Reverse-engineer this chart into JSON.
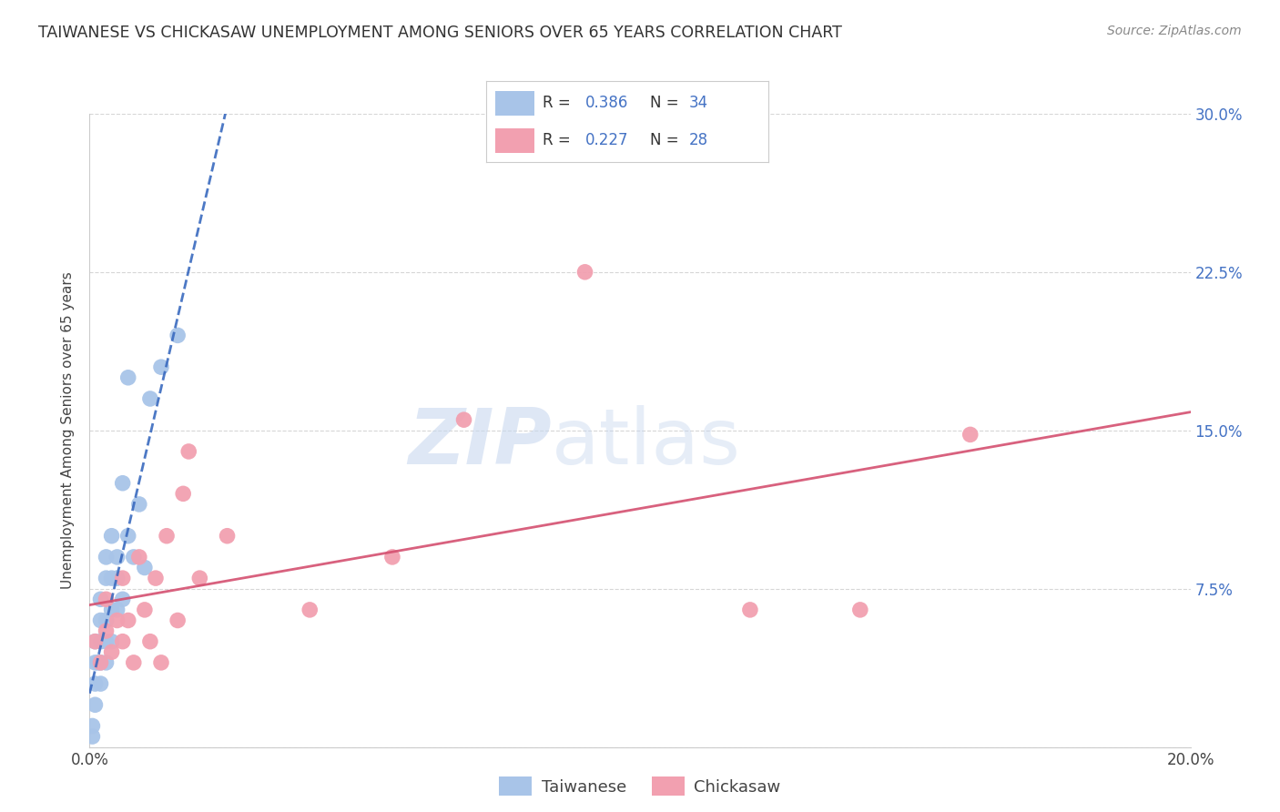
{
  "title": "TAIWANESE VS CHICKASAW UNEMPLOYMENT AMONG SENIORS OVER 65 YEARS CORRELATION CHART",
  "source": "Source: ZipAtlas.com",
  "ylabel": "Unemployment Among Seniors over 65 years",
  "watermark_zip": "ZIP",
  "watermark_atlas": "atlas",
  "taiwanese_R": 0.386,
  "taiwanese_N": 34,
  "chickasaw_R": 0.227,
  "chickasaw_N": 28,
  "taiwanese_color": "#a8c4e8",
  "chickasaw_color": "#f2a0b0",
  "taiwanese_line_color": "#3a6abf",
  "chickasaw_line_color": "#d45070",
  "xlim": [
    0.0,
    0.2
  ],
  "ylim": [
    0.0,
    0.3
  ],
  "xticks": [
    0.0,
    0.04,
    0.08,
    0.12,
    0.16,
    0.2
  ],
  "yticks": [
    0.0,
    0.075,
    0.15,
    0.225,
    0.3
  ],
  "taiwanese_x": [
    0.0005,
    0.0005,
    0.001,
    0.001,
    0.001,
    0.001,
    0.0015,
    0.002,
    0.002,
    0.002,
    0.002,
    0.002,
    0.003,
    0.003,
    0.003,
    0.003,
    0.003,
    0.004,
    0.004,
    0.004,
    0.004,
    0.005,
    0.005,
    0.005,
    0.006,
    0.006,
    0.007,
    0.007,
    0.008,
    0.009,
    0.01,
    0.011,
    0.013,
    0.016
  ],
  "taiwanese_y": [
    0.005,
    0.01,
    0.02,
    0.03,
    0.04,
    0.05,
    0.04,
    0.03,
    0.04,
    0.05,
    0.06,
    0.07,
    0.04,
    0.05,
    0.06,
    0.08,
    0.09,
    0.05,
    0.065,
    0.08,
    0.1,
    0.065,
    0.08,
    0.09,
    0.07,
    0.125,
    0.1,
    0.175,
    0.09,
    0.115,
    0.085,
    0.165,
    0.18,
    0.195
  ],
  "chickasaw_x": [
    0.001,
    0.002,
    0.003,
    0.003,
    0.004,
    0.005,
    0.006,
    0.006,
    0.007,
    0.008,
    0.009,
    0.01,
    0.011,
    0.012,
    0.013,
    0.014,
    0.016,
    0.017,
    0.018,
    0.02,
    0.025,
    0.04,
    0.055,
    0.068,
    0.09,
    0.12,
    0.14,
    0.16
  ],
  "chickasaw_y": [
    0.05,
    0.04,
    0.055,
    0.07,
    0.045,
    0.06,
    0.05,
    0.08,
    0.06,
    0.04,
    0.09,
    0.065,
    0.05,
    0.08,
    0.04,
    0.1,
    0.06,
    0.12,
    0.14,
    0.08,
    0.1,
    0.065,
    0.09,
    0.155,
    0.225,
    0.065,
    0.065,
    0.148
  ],
  "background_color": "#ffffff",
  "grid_color": "#cccccc"
}
